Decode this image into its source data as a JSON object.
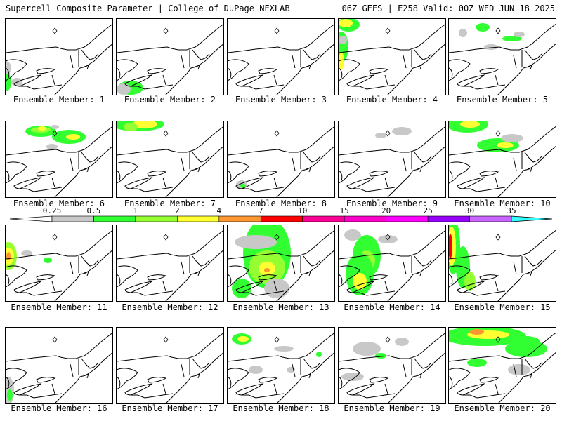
{
  "header": {
    "title": "Supercell Composite Parameter | College of DuPage NEXLAB",
    "run_info": "06Z GEFS | F258 Valid: 00Z WED JUN 18 2025"
  },
  "colorbar": {
    "levels": [
      "0.25",
      "0.5",
      "1",
      "2",
      "4",
      "7",
      "10",
      "15",
      "20",
      "25",
      "30",
      "35"
    ],
    "colors": [
      "#c8c8c8",
      "#32ff32",
      "#96ff32",
      "#ffff32",
      "#ff9632",
      "#ff0000",
      "#ff0096",
      "#ff00c8",
      "#ff00ff",
      "#9600ff",
      "#c864ff",
      "#32ffff"
    ]
  },
  "members": [
    {
      "label": "Ensemble Member: 1"
    },
    {
      "label": "Ensemble Member: 2"
    },
    {
      "label": "Ensemble Member: 3"
    },
    {
      "label": "Ensemble Member: 4"
    },
    {
      "label": "Ensemble Member: 5"
    },
    {
      "label": "Ensemble Member: 6"
    },
    {
      "label": "Ensemble Member: 7"
    },
    {
      "label": "Ensemble Member: 8"
    },
    {
      "label": "Ensemble Member: 9"
    },
    {
      "label": "Ensemble Member: 10"
    },
    {
      "label": "Ensemble Member: 11"
    },
    {
      "label": "Ensemble Member: 12"
    },
    {
      "label": "Ensemble Member: 13"
    },
    {
      "label": "Ensemble Member: 14"
    },
    {
      "label": "Ensemble Member: 15"
    },
    {
      "label": "Ensemble Member: 16"
    },
    {
      "label": "Ensemble Member: 17"
    },
    {
      "label": "Ensemble Member: 18"
    },
    {
      "label": "Ensemble Member: 19"
    },
    {
      "label": "Ensemble Member: 20"
    }
  ]
}
